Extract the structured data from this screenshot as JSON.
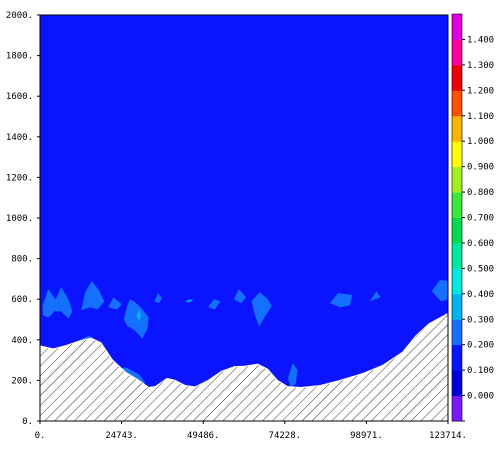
{
  "chart_data": {
    "type": "contour",
    "title": "",
    "xlabel": "",
    "ylabel": "",
    "xlim": [
      0,
      123714
    ],
    "ylim": [
      0,
      2000
    ],
    "x_ticks": [
      {
        "value": 0,
        "label": "0."
      },
      {
        "value": 24743,
        "label": "24743."
      },
      {
        "value": 49486,
        "label": "49486."
      },
      {
        "value": 74228,
        "label": "74228."
      },
      {
        "value": 98971,
        "label": "98971."
      },
      {
        "value": 123714,
        "label": "123714."
      }
    ],
    "y_ticks": [
      {
        "value": 0,
        "label": "0."
      },
      {
        "value": 200,
        "label": "200."
      },
      {
        "value": 400,
        "label": "400."
      },
      {
        "value": 600,
        "label": "600."
      },
      {
        "value": 800,
        "label": "800."
      },
      {
        "value": 1000,
        "label": "1000."
      },
      {
        "value": 1200,
        "label": "1200."
      },
      {
        "value": 1400,
        "label": "1400."
      },
      {
        "value": 1600,
        "label": "1600."
      },
      {
        "value": 1800,
        "label": "1800."
      },
      {
        "value": 2000,
        "label": "2000."
      }
    ],
    "field_background_color": "#0a14ff",
    "colorbar": {
      "levels": [
        {
          "label": "",
          "color": "#7a1aff"
        },
        {
          "label": "0.000",
          "color": "#0000d8"
        },
        {
          "label": "0.100",
          "color": "#0a14ff"
        },
        {
          "label": "0.200",
          "color": "#1670ff"
        },
        {
          "label": "0.300",
          "color": "#00b4f0"
        },
        {
          "label": "0.400",
          "color": "#00e8e0"
        },
        {
          "label": "0.500",
          "color": "#00e8a0"
        },
        {
          "label": "0.600",
          "color": "#00d850"
        },
        {
          "label": "0.700",
          "color": "#3ce83c"
        },
        {
          "label": "0.800",
          "color": "#a0f020"
        },
        {
          "label": "0.900",
          "color": "#ffff00"
        },
        {
          "label": "1.000",
          "color": "#ffb400"
        },
        {
          "label": "1.100",
          "color": "#ff5000"
        },
        {
          "label": "1.200",
          "color": "#f00000"
        },
        {
          "label": "1.300",
          "color": "#ff00a0"
        },
        {
          "label": "1.400",
          "color": "#e000e0"
        }
      ]
    },
    "terrain": {
      "color_hatch": "#333333",
      "profile": [
        [
          0,
          370
        ],
        [
          4000,
          355
        ],
        [
          8000,
          372
        ],
        [
          12000,
          395
        ],
        [
          15500,
          408
        ],
        [
          18500,
          385
        ],
        [
          22000,
          300
        ],
        [
          26000,
          240
        ],
        [
          30000,
          200
        ],
        [
          33000,
          165
        ],
        [
          35000,
          170
        ],
        [
          38500,
          210
        ],
        [
          41000,
          200
        ],
        [
          44000,
          175
        ],
        [
          47000,
          168
        ],
        [
          51000,
          200
        ],
        [
          55000,
          245
        ],
        [
          59000,
          268
        ],
        [
          62000,
          270
        ],
        [
          66000,
          280
        ],
        [
          69000,
          255
        ],
        [
          72000,
          200
        ],
        [
          75000,
          170
        ],
        [
          79000,
          165
        ],
        [
          85000,
          175
        ],
        [
          91000,
          200
        ],
        [
          98000,
          235
        ],
        [
          104000,
          275
        ],
        [
          110000,
          340
        ],
        [
          114000,
          420
        ],
        [
          118000,
          480
        ],
        [
          123714,
          530
        ]
      ]
    },
    "contour_patches": [
      {
        "level": "0.200",
        "color": "#1670ff",
        "points": [
          [
            800,
            570
          ],
          [
            2500,
            650
          ],
          [
            4700,
            600
          ],
          [
            6400,
            660
          ],
          [
            8600,
            600
          ],
          [
            9800,
            540
          ],
          [
            8600,
            505
          ],
          [
            6400,
            540
          ],
          [
            4400,
            540
          ],
          [
            2600,
            510
          ],
          [
            900,
            520
          ]
        ]
      },
      {
        "level": "0.200",
        "color": "#1670ff",
        "points": [
          [
            12500,
            545
          ],
          [
            13700,
            635
          ],
          [
            15700,
            690
          ],
          [
            18000,
            640
          ],
          [
            19500,
            590
          ],
          [
            17500,
            550
          ],
          [
            15000,
            560
          ]
        ]
      },
      {
        "level": "0.200",
        "color": "#1670ff",
        "points": [
          [
            20700,
            560
          ],
          [
            22300,
            610
          ],
          [
            24800,
            575
          ],
          [
            23300,
            550
          ]
        ]
      },
      {
        "level": "0.200",
        "color": "#1670ff",
        "points": [
          [
            25400,
            500
          ],
          [
            26400,
            565
          ],
          [
            27300,
            600
          ],
          [
            28500,
            590
          ],
          [
            30500,
            560
          ],
          [
            33000,
            510
          ],
          [
            32500,
            450
          ],
          [
            31000,
            405
          ],
          [
            28900,
            445
          ],
          [
            26400,
            470
          ]
        ]
      },
      {
        "level": "0.200",
        "color": "#1670ff",
        "points": [
          [
            34700,
            590
          ],
          [
            35800,
            630
          ],
          [
            37000,
            605
          ],
          [
            36000,
            580
          ]
        ]
      },
      {
        "level": "0.200",
        "color": "#1670ff",
        "points": [
          [
            50900,
            560
          ],
          [
            52700,
            600
          ],
          [
            54700,
            590
          ],
          [
            53000,
            550
          ]
        ]
      },
      {
        "level": "0.200",
        "color": "#1670ff",
        "points": [
          [
            58800,
            600
          ],
          [
            60300,
            650
          ],
          [
            62500,
            610
          ],
          [
            61000,
            580
          ]
        ]
      },
      {
        "level": "0.200",
        "color": "#1670ff",
        "points": [
          [
            64200,
            590
          ],
          [
            66600,
            635
          ],
          [
            69100,
            600
          ],
          [
            70300,
            565
          ],
          [
            68000,
            510
          ],
          [
            66400,
            465
          ],
          [
            65000,
            530
          ]
        ]
      },
      {
        "level": "0.200",
        "color": "#1670ff",
        "points": [
          [
            87900,
            580
          ],
          [
            90400,
            630
          ],
          [
            94700,
            620
          ],
          [
            94000,
            570
          ],
          [
            91000,
            560
          ]
        ]
      },
      {
        "level": "0.200",
        "color": "#1670ff",
        "points": [
          [
            100000,
            590
          ],
          [
            102000,
            640
          ],
          [
            103300,
            610
          ]
        ]
      },
      {
        "level": "0.200",
        "color": "#1670ff",
        "points": [
          [
            118800,
            640
          ],
          [
            121300,
            695
          ],
          [
            123714,
            690
          ],
          [
            123714,
            600
          ],
          [
            121500,
            590
          ]
        ]
      },
      {
        "level": "0.200",
        "color": "#1670ff",
        "points": [
          [
            12000,
            400
          ],
          [
            15000,
            420
          ],
          [
            17500,
            380
          ],
          [
            19000,
            300
          ],
          [
            17000,
            280
          ]
        ]
      },
      {
        "level": "0.200",
        "color": "#1670ff",
        "points": [
          [
            22000,
            250
          ],
          [
            26000,
            265
          ],
          [
            30000,
            230
          ],
          [
            32000,
            185
          ],
          [
            28000,
            200
          ],
          [
            24000,
            215
          ]
        ]
      },
      {
        "level": "0.200",
        "color": "#1670ff",
        "points": [
          [
            75200,
            210
          ],
          [
            76600,
            285
          ],
          [
            78100,
            250
          ],
          [
            77500,
            180
          ],
          [
            76000,
            170
          ]
        ]
      },
      {
        "level": "0.300",
        "color": "#00b4f0",
        "points": [
          [
            29300,
            520
          ],
          [
            30000,
            550
          ],
          [
            30700,
            520
          ],
          [
            30000,
            490
          ]
        ]
      },
      {
        "level": "0.300",
        "color": "#00b4f0",
        "points": [
          [
            44000,
            590
          ],
          [
            45500,
            600
          ],
          [
            46500,
            595
          ],
          [
            45000,
            585
          ]
        ]
      }
    ]
  }
}
